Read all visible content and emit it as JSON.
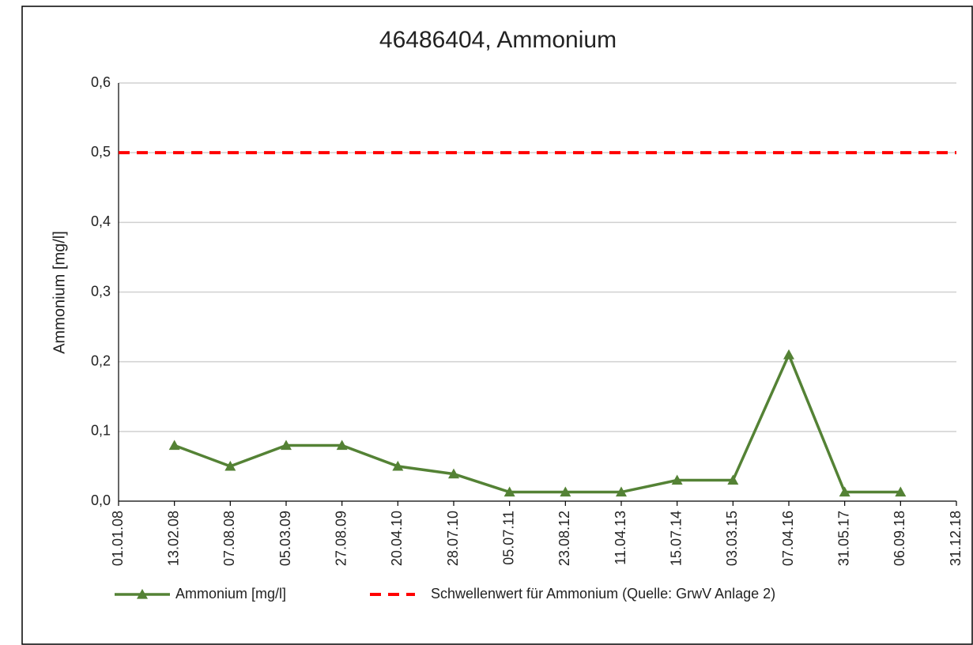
{
  "chart_data": {
    "type": "line",
    "title": "46486404, Ammonium",
    "y_label": "Ammonium  [mg/l]",
    "categories": [
      "01.01.08",
      "13.02.08",
      "07.08.08",
      "05.03.09",
      "27.08.09",
      "20.04.10",
      "28.07.10",
      "05.07.11",
      "23.08.12",
      "11.04.13",
      "15.07.14",
      "03.03.15",
      "07.04.16",
      "31.05.17",
      "06.09.18",
      "31.12.18"
    ],
    "series": [
      {
        "name": "Ammonium [mg/l]",
        "color": "#548235",
        "marker": "triangle",
        "values": [
          null,
          0.08,
          0.05,
          0.08,
          0.08,
          0.05,
          0.039,
          0.013,
          0.013,
          0.013,
          0.03,
          0.03,
          0.21,
          0.013,
          0.013,
          null
        ]
      },
      {
        "name": "Schwellenwert für Ammonium (Quelle: GrwV Anlage 2)",
        "color": "#ff0000",
        "dashed": true,
        "values": [
          0.5,
          0.5,
          0.5,
          0.5,
          0.5,
          0.5,
          0.5,
          0.5,
          0.5,
          0.5,
          0.5,
          0.5,
          0.5,
          0.5,
          0.5,
          0.5
        ]
      }
    ],
    "ylim": [
      0,
      0.6
    ],
    "yticks": [
      {
        "value": 0,
        "label": "0,0"
      },
      {
        "value": 0.1,
        "label": "0,1"
      },
      {
        "value": 0.2,
        "label": "0,2"
      },
      {
        "value": 0.3,
        "label": "0,3"
      },
      {
        "value": 0.4,
        "label": "0,4"
      },
      {
        "value": 0.5,
        "label": "0,5"
      },
      {
        "value": 0.6,
        "label": "0,6"
      }
    ],
    "grid": true,
    "legend": "bottom"
  }
}
